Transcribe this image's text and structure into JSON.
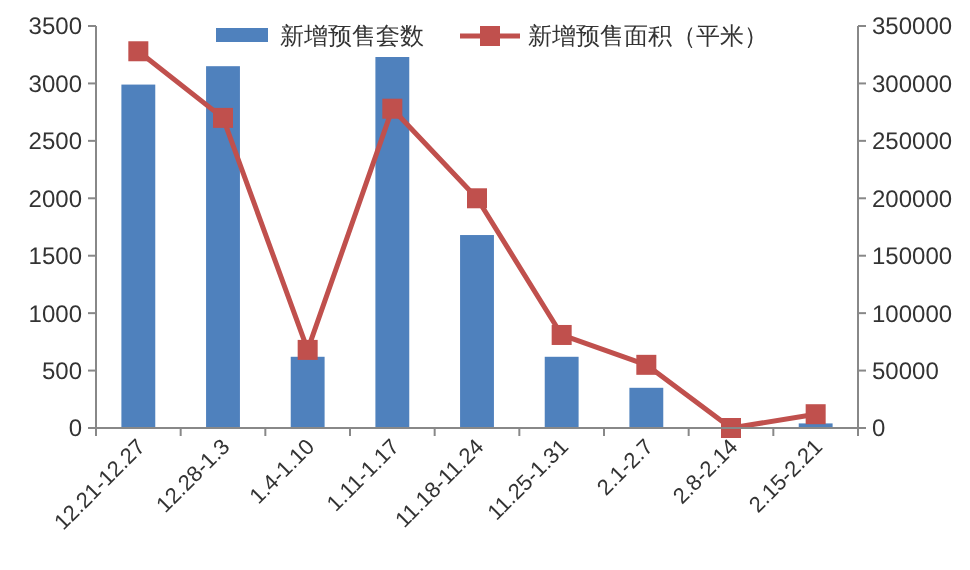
{
  "chart_data": {
    "type": "bar",
    "categories": [
      "12.21-12.27",
      "12.28-1.3",
      "1.4-1.10",
      "1.11-1.17",
      "11.18-11.24",
      "11.25-1.31",
      "2.1-2.7",
      "2.8-2.14",
      "2.15-2.21"
    ],
    "series": [
      {
        "name": "新增预售套数",
        "color": "#4f81bd",
        "values": [
          2990,
          3150,
          620,
          3230,
          1680,
          620,
          350,
          0,
          40
        ]
      },
      {
        "name": "新增预售面积（平米）",
        "type": "line",
        "axis": "y2",
        "color": "#c0504d",
        "marker": "square",
        "values": [
          328000,
          270000,
          68000,
          278000,
          200000,
          81000,
          55000,
          0,
          12000
        ]
      }
    ],
    "ylim": [
      0,
      3500
    ],
    "yticks": [
      0,
      500,
      1000,
      1500,
      2000,
      2500,
      3000,
      3500
    ],
    "y2lim": [
      0,
      350000
    ],
    "y2ticks": [
      0,
      50000,
      100000,
      150000,
      200000,
      250000,
      300000,
      350000
    ],
    "legend": "top",
    "grid": false
  }
}
